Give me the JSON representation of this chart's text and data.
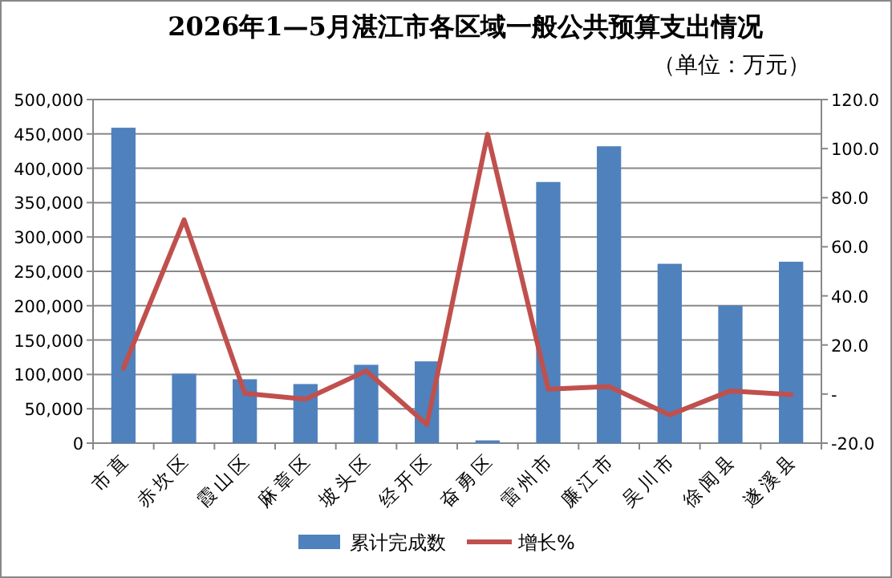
{
  "chart_data": {
    "type": "bar",
    "title": "2026年1—5月湛江市各区域一般公共预算支出情况",
    "subtitle": "（单位：万元）",
    "categories": [
      "市直",
      "赤坎区",
      "霞山区",
      "麻章区",
      "坡头区",
      "经开区",
      "奋勇区",
      "雷州市",
      "廉江市",
      "吴川市",
      "徐闻县",
      "遂溪县"
    ],
    "series": [
      {
        "name": "累计完成数",
        "color": "#4f81bd",
        "values": [
          459000,
          101000,
          93000,
          86000,
          114000,
          119000,
          4000,
          380000,
          432000,
          261000,
          200000,
          264000
        ]
      },
      {
        "name": "增长%",
        "type": "line",
        "axis": "y2",
        "color": "#c0504d",
        "values": [
          10.5,
          71.0,
          0.3,
          -2.1,
          9.4,
          -12.4,
          105.8,
          2.0,
          3.1,
          -8.5,
          1.3,
          -0.2
        ]
      }
    ],
    "ylim": [
      0,
      500000
    ],
    "yticks": [
      0,
      {
        "value": 50000,
        "label": "50,000"
      },
      {
        "value": 100000,
        "label": "100,000"
      },
      {
        "value": 150000,
        "label": "150,000"
      },
      {
        "value": 200000,
        "label": "200,000"
      },
      {
        "value": 250000,
        "label": "250,000"
      },
      {
        "value": 300000,
        "label": "300,000"
      },
      {
        "value": 350000,
        "label": "350,000"
      },
      {
        "value": 400000,
        "label": "400,000"
      },
      {
        "value": 450000,
        "label": "450,000"
      },
      {
        "value": 500000,
        "label": "500,000"
      }
    ],
    "y2lim": [
      -20,
      120
    ],
    "y2ticks": [
      {
        "value": -20,
        "label": "-20.0"
      },
      {
        "value": 0,
        "label": "-"
      },
      {
        "value": 20,
        "label": "20.0"
      },
      {
        "value": 40,
        "label": "40.0"
      },
      {
        "value": 60,
        "label": "60.0"
      },
      {
        "value": 80,
        "label": "80.0"
      },
      {
        "value": 100,
        "label": "100.0"
      },
      {
        "value": 120,
        "label": "120.0"
      }
    ],
    "grid": "y",
    "legend": "bottom"
  }
}
